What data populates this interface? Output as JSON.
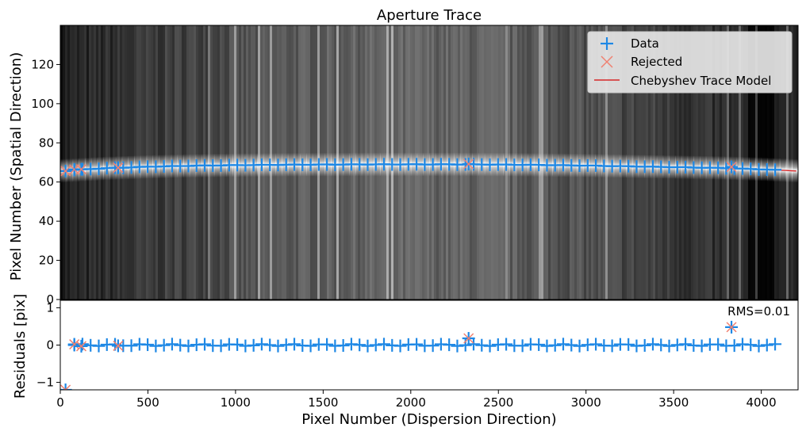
{
  "title": "Aperture Trace",
  "colors": {
    "data": "#1e88e5",
    "rejected": "#f08070",
    "model": "#d62728"
  },
  "legend": {
    "placement": "top-right",
    "items": [
      {
        "label": "Data",
        "marker": "plus"
      },
      {
        "label": "Rejected",
        "marker": "x"
      },
      {
        "label": "Chebyshev Trace Model",
        "marker": "line"
      }
    ]
  },
  "annotation_rms": "RMS=0.01",
  "chart_data": [
    {
      "name": "trace",
      "type": "scatter",
      "xlabel": "",
      "ylabel": "Pixel Number (Spatial Direction)",
      "xlim": [
        0,
        4210
      ],
      "ylim": [
        0,
        140
      ],
      "xticks": [
        0,
        500,
        1000,
        1500,
        2000,
        2500,
        3000,
        3500,
        4000
      ],
      "yticks": [
        0,
        20,
        40,
        60,
        80,
        100,
        120
      ],
      "background": "2D spectrum image (grayscale) with bright trace near y=68",
      "model_points": {
        "x": [
          0,
          250,
          500,
          750,
          1000,
          1250,
          1500,
          1750,
          2000,
          2250,
          2500,
          2750,
          3000,
          3250,
          3500,
          3750,
          4000,
          4210
        ],
        "y": [
          65.8,
          67.0,
          67.8,
          68.3,
          68.6,
          68.8,
          68.9,
          69.0,
          69.0,
          69.0,
          68.9,
          68.7,
          68.4,
          68.0,
          67.6,
          67.2,
          66.5,
          65.6
        ]
      },
      "rejected": {
        "x": [
          30,
          80,
          120,
          330,
          2330,
          3830
        ],
        "y": [
          65.6,
          66.4,
          66.5,
          67.3,
          69.2,
          67.7
        ]
      }
    },
    {
      "name": "residuals",
      "type": "scatter",
      "xlabel": "Pixel Number (Dispersion Direction)",
      "ylabel": "Residuals [pix]",
      "xlim": [
        0,
        4210
      ],
      "ylim": [
        -1.2,
        1.2
      ],
      "xticks": [
        0,
        500,
        1000,
        1500,
        2000,
        2500,
        3000,
        3500,
        4000
      ],
      "yticks": [
        -1,
        0,
        1
      ],
      "rejected": {
        "x": [
          30,
          80,
          120,
          330,
          2330,
          3830
        ],
        "y": [
          -1.2,
          0.02,
          -0.03,
          -0.02,
          0.18,
          0.48
        ]
      }
    }
  ],
  "data_series": {
    "x_start": 80,
    "x_step": 46.5,
    "count": 87
  }
}
